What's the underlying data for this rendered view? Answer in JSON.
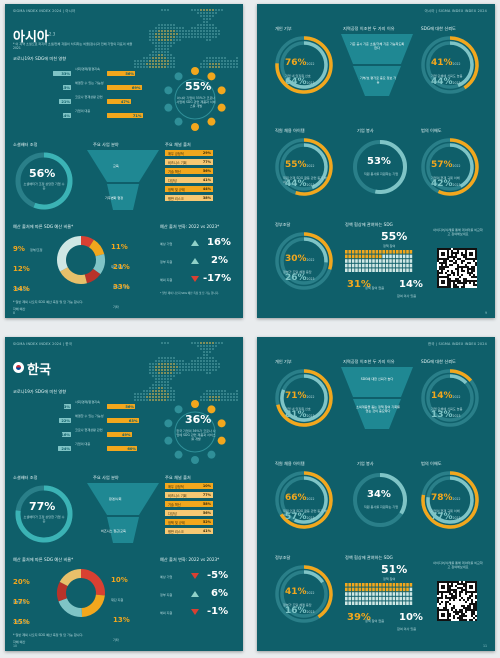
{
  "colors": {
    "bg": "#0f5f6a",
    "accent": "#f2a71d",
    "teal": "#7fc4c6",
    "red": "#d94032"
  },
  "header": {
    "p1": "SIGMA INDEX INDEX 2024 | 아시아",
    "p2": "아시아 | SIGMA INDEX INDEX 2024",
    "p3": "SIGMA INDEX INDEX 2024 | 한국",
    "p4": "한국 | SIGMA INDEX INDEX 2024"
  },
  "asia": {
    "title": "아시아",
    "title_sup": "2.3",
    "intro": "* 이 지역 소셜으로 퍼지어 소셜/전체 자원이 차지하는 비율(점수)과 전체 기업의 지표의 비율 2021",
    "section1": "코로나19가 SDG에 미친 영향",
    "bar_rows": [
      {
        "label": "사회/경제/환경지속",
        "v1": "33%",
        "v2": "56%"
      },
      {
        "label": "해결할 수 있는 가능성",
        "v1": "15%",
        "v2": "69%"
      },
      {
        "label": "코로나 현재상황 관련",
        "v1": "21%",
        "v2": "47%"
      },
      {
        "label": "기업의 대응",
        "v1": "14%",
        "v2": "71%"
      }
    ],
    "bubble_value": "55%",
    "bubble_text": "아시아 기업의 55%가 코로나 사업에 SDG 관련 제품과 서비스를 개발",
    "social": {
      "label": "소셜배터 조정",
      "value": "56%",
      "text": "소셜배터가 조정 상당한 기업 수준"
    },
    "funnel_title": "주요 사업 분야",
    "funnel": [
      "교육",
      "기후변화 협정"
    ],
    "priority_title": "주요 채널 출처",
    "priority": [
      {
        "label": "매우 긍정적",
        "value": "29%"
      },
      {
        "label": "비즈니스 기회",
        "value": "77%"
      },
      {
        "label": "기술 혁신",
        "value": "56%"
      },
      {
        "label": "다양성",
        "value": "41%"
      },
      {
        "label": "정책 및 규제",
        "value": "44%"
      },
      {
        "label": "평판 리스크",
        "value": "38%"
      }
    ],
    "budget_title": "예산 출처에 따른 SDG 예산 비율*",
    "donut": [
      {
        "value": "9%",
        "label": "정부/조정"
      },
      {
        "value": "12%",
        "label": "기업 보조금"
      },
      {
        "value": "14%",
        "label": "자체 예산"
      },
      {
        "value": "11%",
        "label": "재단 지원"
      },
      {
        "value": "21%",
        "label": "투자 및 대출"
      },
      {
        "value": "33%",
        "label": "기타"
      }
    ],
    "change_title": "예산 출처 변화: 2022 vs 2023*",
    "changes": [
      {
        "label": "예상 기업",
        "value": "16%",
        "dir": "up"
      },
      {
        "label": "정부 지원",
        "value": "2%",
        "dir": "up"
      },
      {
        "label": "해외 지원",
        "value": "-17%",
        "dir": "down"
      }
    ],
    "footnote": "* 일반 제외 나오지 SDG 예산 측정 및 답 가능 합니다.",
    "page_no": "8"
  },
  "asia2": {
    "c1": {
      "title": "개인 기부",
      "v2022": "76%",
      "v2023": "64%",
      "y1": "2022",
      "y2": "2023",
      "note": "기업 내 임직원 선호"
    },
    "funnel_title": "지역공정 이조한 두 가지 이유",
    "funnel_top": "기준 공시 기준 소셜/가체 기준 가능하도록 한다",
    "funnel_bottom": "기부/보 평가로 중요 정보 가능",
    "c2": {
      "title": "SDG에 대한 신뢰도",
      "v2022": "41%",
      "v2023": "44%",
      "y1": "2022",
      "y2": "2023",
      "note": "기업 단체에 신뢰도 높음"
    },
    "c3": {
      "title": "직원 채용 아이템",
      "v2022": "55%",
      "v2023": "44%",
      "y1": "2022",
      "y2": "2023",
      "note": "직원 인재 SDG 활동 관련 동기 부여"
    },
    "c4": {
      "title": "기업 봉사",
      "value": "53%",
      "note": "직원 봉사를 지원하는 기업"
    },
    "c5": {
      "title": "법의 이해도",
      "v2022": "57%",
      "v2023": "42%",
      "y1": "2022",
      "y2": "2023",
      "note": "기업의 현재 규제 이해"
    },
    "c6": {
      "title": "정부조달",
      "v2022": "30%",
      "v2023": "26%",
      "y1": "2022",
      "y2": "2023",
      "note": "정부가 조달 체결 응답"
    },
    "waffle_title": "정책 협상에 관여하는 SDG",
    "waffle_value": "55%",
    "waffle_sub": "정책 참여",
    "w1": "31%",
    "w1_sub": "정책 참여 없음",
    "w2": "14%",
    "w2_sub": "참여 의사 있음",
    "qr_text": "아이디어/사례를 통해 데이터를 비교하고 참여해보세요",
    "page_no": "9"
  },
  "korea": {
    "title": "한국",
    "section1": "코로나19가 SDG에 미친 영향",
    "bar_rows": [
      {
        "label": "사회/경제/환경지속",
        "v1": "13%",
        "v2": "56%"
      },
      {
        "label": "해결할 수 있는 가능성",
        "v1": "22%",
        "v2": "63%"
      },
      {
        "label": "코로나 현재상황 관련",
        "v1": "16%",
        "v2": "49%"
      },
      {
        "label": "기업의 대응",
        "v1": "24%",
        "v2": "60%"
      }
    ],
    "bubble_value": "36%",
    "bubble_text": "한국 기업의 36%가 코로나 사업에 SDG 관련 제품과 서비스를 개발",
    "social": {
      "label": "소셜배터 조정",
      "value": "77%",
      "text": "소셜배터가 조정 상당한 기업 수준"
    },
    "funnel_title": "주요 사업 분야",
    "funnel": [
      "환경/사회",
      "비즈니스 접근/교육"
    ],
    "priority_title": "주요 채널 출처",
    "priority": [
      {
        "label": "매우 긍정적",
        "value": "10%"
      },
      {
        "label": "비즈니스 기회",
        "value": "77%"
      },
      {
        "label": "기술 혁신",
        "value": "58%"
      },
      {
        "label": "다양성",
        "value": "56%"
      },
      {
        "label": "정책 및 규제",
        "value": "52%"
      },
      {
        "label": "평판 리스크",
        "value": "41%"
      }
    ],
    "budget_title": "예산 출처에 따른 SDG 예산 비율*",
    "donut": [
      {
        "value": "20%",
        "label": "정부/조정"
      },
      {
        "value": "17%",
        "label": "기업 보조금"
      },
      {
        "value": "15%",
        "label": "자체 예산"
      },
      {
        "value": "10%",
        "label": "재단 지원"
      },
      {
        "value": "13%",
        "label": "기타"
      }
    ],
    "change_title": "예산 출처 변화: 2022 vs 2023*",
    "changes": [
      {
        "label": "예상 기업",
        "value": "-5%",
        "dir": "down"
      },
      {
        "label": "정부 지원",
        "value": "6%",
        "dir": "up"
      },
      {
        "label": "해외 지원",
        "value": "-1%",
        "dir": "down"
      }
    ],
    "footnote": "* 일반 제외 나오지 SDG 예산 측정 및 답 가능 합니다.",
    "page_no": "10"
  },
  "korea2": {
    "c1": {
      "title": "개인 기부",
      "v2022": "71%",
      "v2023": "81%",
      "y1": "2022",
      "y2": "2023",
      "note": "기업 내 임직원 선호"
    },
    "funnel_title": "지역공정 이조한 두 가지 이유",
    "funnel_top": "SDG에 대한 신뢰가 높다",
    "funnel_bottom": "소외계층을 돕는 정책 참여 기회를 얻는 것이 중요하다",
    "c2": {
      "title": "SDG에 대한 신뢰도",
      "v2022": "14%",
      "v2023": "13%",
      "y1": "2022",
      "y2": "2023",
      "note": "기업 단체에 신뢰도 높음"
    },
    "c3": {
      "title": "직원 채용 아이템",
      "v2022": "66%",
      "v2023": "57%",
      "y1": "2022",
      "y2": "2023",
      "note": "직원 인재 SDG 활동 관련 동기 부여"
    },
    "c4": {
      "title": "기업 봉사",
      "value": "34%",
      "note": "직원 봉사를 지원하는 기업"
    },
    "c5": {
      "title": "법의 이해도",
      "v2022": "78%",
      "v2023": "77%",
      "y1": "2022",
      "y2": "2023",
      "note": "기업의 현재 규제 이해"
    },
    "c6": {
      "title": "정부조달",
      "v2022": "41%",
      "v2023": "16%",
      "y1": "2022",
      "y2": "2023",
      "note": "정부가 조달 체결 응답"
    },
    "waffle_title": "정책 협상에 관여하는 SDG",
    "waffle_value": "51%",
    "waffle_sub": "정책 참여",
    "w1": "39%",
    "w1_sub": "정책 참여 없음",
    "w2": "10%",
    "w2_sub": "참여 의사 있음",
    "qr_text": "아이디어/사례를 통해 데이터를 비교하고 참여해보세요",
    "page_no": "11"
  }
}
